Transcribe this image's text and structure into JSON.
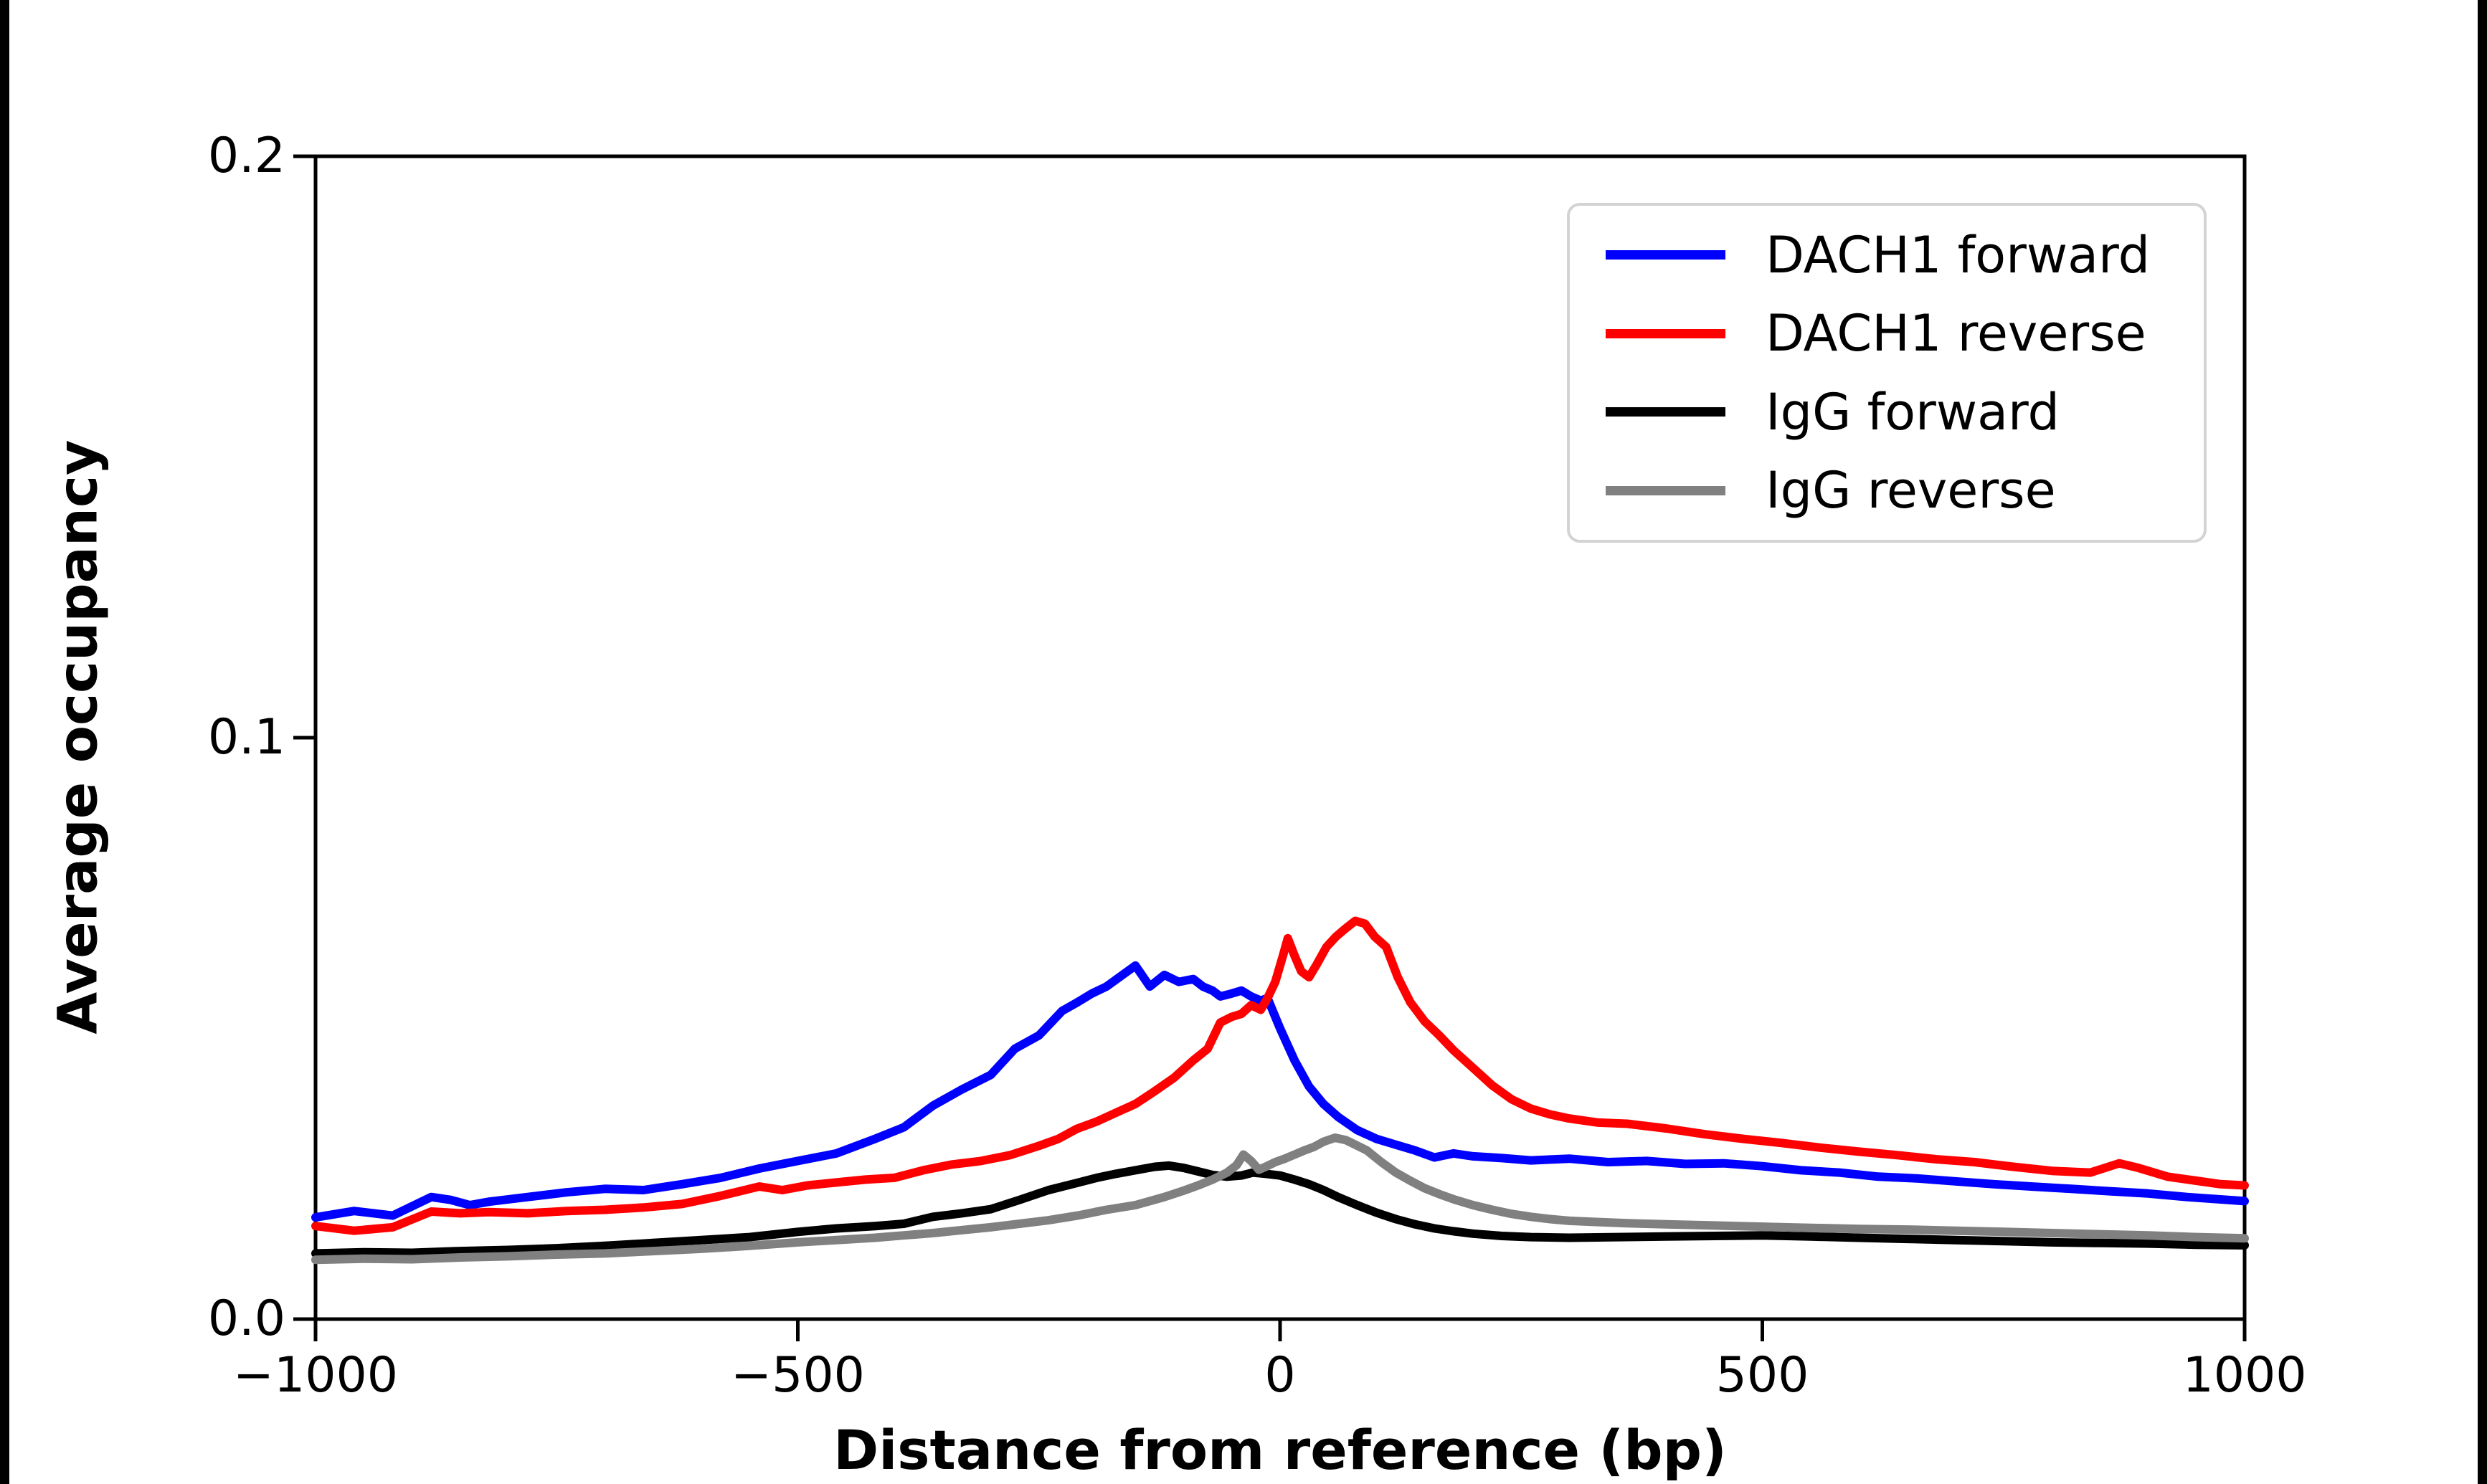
{
  "chart_data": {
    "type": "line",
    "title": "",
    "xlabel": "Distance from reference (bp)",
    "ylabel": "Average occupancy",
    "xlim": [
      -1000,
      1000
    ],
    "ylim": [
      0,
      0.2
    ],
    "grid": false,
    "legend_position": "upper right",
    "xticks": {
      "values": [
        -1000,
        -500,
        0,
        500,
        1000
      ],
      "labels": [
        "−1000",
        "−500",
        "0",
        "500",
        "1000"
      ]
    },
    "yticks": {
      "values": [
        0,
        0.1,
        0.2
      ],
      "labels": [
        "0.0",
        "0.1",
        "0.2"
      ]
    },
    "series": [
      {
        "name": "DACH1 forward",
        "color": "#0000ff",
        "x": [
          -1000,
          -960,
          -920,
          -880,
          -860,
          -840,
          -820,
          -780,
          -740,
          -700,
          -660,
          -620,
          -580,
          -540,
          -500,
          -460,
          -420,
          -390,
          -360,
          -330,
          -300,
          -275,
          -250,
          -226,
          -210,
          -195,
          -180,
          -165,
          -150,
          -135,
          -120,
          -105,
          -90,
          -80,
          -70,
          -62,
          -50,
          -40,
          -30,
          -20,
          -13,
          0,
          15,
          30,
          45,
          60,
          80,
          100,
          120,
          140,
          160,
          180,
          200,
          230,
          260,
          300,
          340,
          380,
          420,
          460,
          500,
          540,
          580,
          620,
          660,
          700,
          740,
          780,
          820,
          860,
          900,
          940,
          1000
        ],
        "y": [
          0.0175,
          0.0186,
          0.0178,
          0.021,
          0.0205,
          0.0196,
          0.0202,
          0.021,
          0.0218,
          0.0224,
          0.0222,
          0.0232,
          0.0243,
          0.0259,
          0.0272,
          0.0285,
          0.031,
          0.033,
          0.0367,
          0.0395,
          0.042,
          0.0465,
          0.0488,
          0.053,
          0.0545,
          0.056,
          0.0572,
          0.059,
          0.0608,
          0.0572,
          0.0592,
          0.058,
          0.0585,
          0.0572,
          0.0565,
          0.0555,
          0.056,
          0.0565,
          0.0555,
          0.0548,
          0.0552,
          0.05,
          0.0445,
          0.04,
          0.037,
          0.0348,
          0.0325,
          0.031,
          0.03,
          0.029,
          0.0278,
          0.0285,
          0.028,
          0.0277,
          0.0273,
          0.0276,
          0.027,
          0.0272,
          0.0267,
          0.0268,
          0.0263,
          0.0256,
          0.0252,
          0.0245,
          0.0242,
          0.0237,
          0.0232,
          0.0228,
          0.0224,
          0.022,
          0.0216,
          0.021,
          0.0203
        ]
      },
      {
        "name": "DACH1 reverse",
        "color": "#ff0000",
        "x": [
          -1000,
          -960,
          -920,
          -880,
          -850,
          -820,
          -780,
          -740,
          -700,
          -660,
          -620,
          -580,
          -540,
          -516,
          -490,
          -460,
          -430,
          -400,
          -370,
          -340,
          -310,
          -280,
          -250,
          -230,
          -211,
          -190,
          -170,
          -150,
          -130,
          -110,
          -90,
          -75,
          -62,
          -50,
          -40,
          -30,
          -20,
          -13,
          -5,
          3,
          8,
          15,
          22,
          30,
          38,
          48,
          58,
          68,
          78,
          88,
          98,
          110,
          122,
          135,
          150,
          165,
          180,
          200,
          220,
          240,
          260,
          280,
          300,
          330,
          360,
          400,
          440,
          480,
          520,
          560,
          600,
          640,
          680,
          720,
          760,
          800,
          840,
          870,
          890,
          920,
          950,
          975,
          1000
        ],
        "y": [
          0.016,
          0.0152,
          0.0158,
          0.0185,
          0.0182,
          0.0184,
          0.0182,
          0.0186,
          0.0188,
          0.0192,
          0.0198,
          0.0212,
          0.0228,
          0.0222,
          0.023,
          0.0235,
          0.024,
          0.0243,
          0.0256,
          0.0266,
          0.0272,
          0.0282,
          0.0298,
          0.031,
          0.0327,
          0.034,
          0.0355,
          0.037,
          0.0392,
          0.0415,
          0.0445,
          0.0465,
          0.051,
          0.052,
          0.0525,
          0.054,
          0.0532,
          0.0552,
          0.058,
          0.0625,
          0.0655,
          0.0625,
          0.0598,
          0.0588,
          0.061,
          0.064,
          0.0658,
          0.0672,
          0.0685,
          0.068,
          0.0658,
          0.064,
          0.0588,
          0.0545,
          0.0512,
          0.0488,
          0.0462,
          0.0432,
          0.0402,
          0.0378,
          0.0362,
          0.0352,
          0.0345,
          0.0338,
          0.0336,
          0.0328,
          0.0318,
          0.031,
          0.0303,
          0.0295,
          0.0288,
          0.0282,
          0.0275,
          0.027,
          0.0262,
          0.0255,
          0.0252,
          0.0268,
          0.026,
          0.0245,
          0.0238,
          0.0232,
          0.023
        ]
      },
      {
        "name": "IgG forward",
        "color": "#000000",
        "x": [
          -1000,
          -950,
          -900,
          -850,
          -800,
          -750,
          -700,
          -650,
          -600,
          -550,
          -500,
          -460,
          -420,
          -390,
          -360,
          -330,
          -300,
          -270,
          -240,
          -211,
          -190,
          -170,
          -150,
          -130,
          -115,
          -100,
          -85,
          -70,
          -55,
          -40,
          -28,
          -15,
          0,
          15,
          30,
          45,
          60,
          80,
          100,
          120,
          140,
          160,
          180,
          200,
          230,
          260,
          300,
          350,
          400,
          450,
          500,
          550,
          600,
          650,
          700,
          750,
          800,
          850,
          900,
          950,
          1000
        ],
        "y": [
          0.0113,
          0.0115,
          0.0114,
          0.0117,
          0.0119,
          0.0122,
          0.0126,
          0.0131,
          0.0136,
          0.0141,
          0.015,
          0.0156,
          0.016,
          0.0164,
          0.0176,
          0.0182,
          0.0189,
          0.0205,
          0.0222,
          0.0234,
          0.0243,
          0.025,
          0.0256,
          0.0262,
          0.0264,
          0.026,
          0.0254,
          0.0248,
          0.0245,
          0.0247,
          0.0252,
          0.025,
          0.0247,
          0.024,
          0.0232,
          0.0222,
          0.021,
          0.0196,
          0.0183,
          0.0172,
          0.0163,
          0.0156,
          0.0151,
          0.0147,
          0.0143,
          0.0141,
          0.014,
          0.0141,
          0.0142,
          0.0143,
          0.0144,
          0.0142,
          0.014,
          0.0138,
          0.0136,
          0.0134,
          0.0132,
          0.0131,
          0.013,
          0.0128,
          0.0127
        ]
      },
      {
        "name": "IgG reverse",
        "color": "#808080",
        "x": [
          -1000,
          -950,
          -900,
          -850,
          -800,
          -750,
          -700,
          -650,
          -600,
          -550,
          -500,
          -460,
          -420,
          -390,
          -360,
          -330,
          -300,
          -270,
          -240,
          -210,
          -180,
          -150,
          -120,
          -100,
          -85,
          -70,
          -55,
          -45,
          -38,
          -30,
          -22,
          -15,
          -5,
          5,
          15,
          25,
          35,
          45,
          57,
          68,
          78,
          90,
          105,
          120,
          135,
          150,
          165,
          180,
          200,
          220,
          240,
          260,
          280,
          300,
          330,
          360,
          400,
          450,
          500,
          550,
          600,
          650,
          700,
          750,
          800,
          850,
          900,
          950,
          1000
        ],
        "y": [
          0.0102,
          0.0104,
          0.0103,
          0.0106,
          0.0108,
          0.0111,
          0.0113,
          0.0117,
          0.0121,
          0.0126,
          0.0132,
          0.0136,
          0.014,
          0.0144,
          0.0148,
          0.0153,
          0.0158,
          0.0164,
          0.017,
          0.0178,
          0.0188,
          0.0196,
          0.021,
          0.0221,
          0.023,
          0.024,
          0.0252,
          0.0265,
          0.0283,
          0.0272,
          0.0257,
          0.0262,
          0.027,
          0.0276,
          0.0283,
          0.029,
          0.0296,
          0.0305,
          0.0312,
          0.0308,
          0.03,
          0.029,
          0.027,
          0.0252,
          0.0238,
          0.0225,
          0.0215,
          0.0206,
          0.0196,
          0.0188,
          0.0181,
          0.0176,
          0.0172,
          0.0169,
          0.0167,
          0.0165,
          0.0163,
          0.0161,
          0.0159,
          0.0157,
          0.0155,
          0.0154,
          0.0152,
          0.015,
          0.0148,
          0.0146,
          0.0144,
          0.0141,
          0.0139
        ]
      }
    ]
  },
  "style": {
    "line_width": 12,
    "spine_width": 5,
    "tick_length": 29,
    "axis_color": "#000000",
    "legend_border_color": "#d3d3d3"
  }
}
